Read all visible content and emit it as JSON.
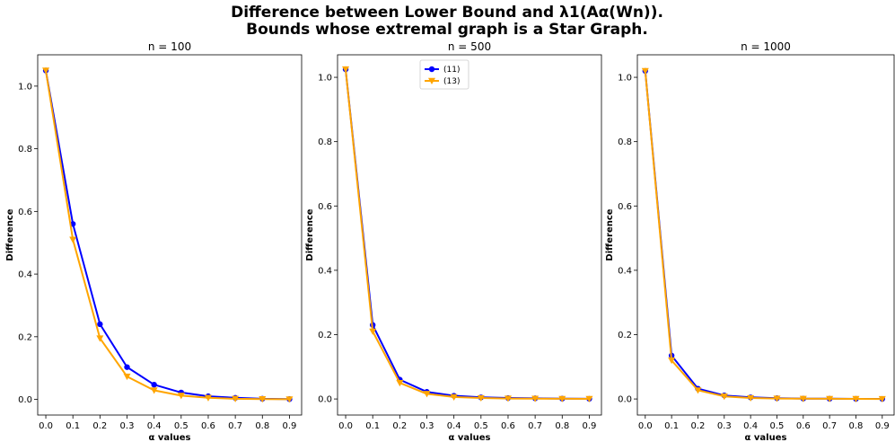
{
  "figure": {
    "title_line1": "Difference between Lower Bound and λ1(Aα(Wn)).",
    "title_line2": "Bounds whose extremal graph is a Star Graph."
  },
  "colors": {
    "series_11": "#0000ff",
    "series_13": "#ffa500"
  },
  "chart_data": [
    {
      "type": "line",
      "title": "n = 100",
      "xlabel": "α values",
      "ylabel": "Difference",
      "x": [
        0.0,
        0.1,
        0.2,
        0.3,
        0.4,
        0.5,
        0.6,
        0.7,
        0.8,
        0.9
      ],
      "xticks": [
        "0.0",
        "0.1",
        "0.2",
        "0.3",
        "0.4",
        "0.5",
        "0.6",
        "0.7",
        "0.8",
        "0.9"
      ],
      "yticks": [
        "0.0",
        "0.2",
        "0.4",
        "0.6",
        "0.8",
        "1.0"
      ],
      "ylim": [
        -0.05,
        1.1
      ],
      "series": [
        {
          "name": "(11)",
          "values": [
            1.05,
            0.56,
            0.24,
            0.103,
            0.047,
            0.022,
            0.01,
            0.005,
            0.002,
            0.001
          ]
        },
        {
          "name": "(13)",
          "values": [
            1.05,
            0.51,
            0.195,
            0.073,
            0.029,
            0.012,
            0.005,
            0.002,
            0.001,
            0.0005
          ]
        }
      ],
      "legend": false
    },
    {
      "type": "line",
      "title": "n = 500",
      "xlabel": "α values",
      "ylabel": "Difference",
      "x": [
        0.0,
        0.1,
        0.2,
        0.3,
        0.4,
        0.5,
        0.6,
        0.7,
        0.8,
        0.9
      ],
      "xticks": [
        "0.0",
        "0.1",
        "0.2",
        "0.3",
        "0.4",
        "0.5",
        "0.6",
        "0.7",
        "0.8",
        "0.9"
      ],
      "yticks": [
        "0.0",
        "0.2",
        "0.4",
        "0.6",
        "0.8",
        "1.0"
      ],
      "ylim": [
        -0.05,
        1.07
      ],
      "series": [
        {
          "name": "(11)",
          "values": [
            1.025,
            0.23,
            0.06,
            0.022,
            0.01,
            0.005,
            0.003,
            0.002,
            0.001,
            0.0005
          ]
        },
        {
          "name": "(13)",
          "values": [
            1.025,
            0.21,
            0.05,
            0.016,
            0.006,
            0.003,
            0.0015,
            0.001,
            0.0005,
            0.0003
          ]
        }
      ],
      "legend": true,
      "legend_position": "top-center"
    },
    {
      "type": "line",
      "title": "n = 1000",
      "xlabel": "α values",
      "ylabel": "Difference",
      "x": [
        0.0,
        0.1,
        0.2,
        0.3,
        0.4,
        0.5,
        0.6,
        0.7,
        0.8,
        0.9
      ],
      "xticks": [
        "0.0",
        "0.1",
        "0.2",
        "0.3",
        "0.4",
        "0.5",
        "0.6",
        "0.7",
        "0.8",
        "0.9"
      ],
      "yticks": [
        "0.0",
        "0.2",
        "0.4",
        "0.6",
        "0.8",
        "1.0"
      ],
      "ylim": [
        -0.05,
        1.07
      ],
      "series": [
        {
          "name": "(11)",
          "values": [
            1.02,
            0.135,
            0.032,
            0.011,
            0.005,
            0.0025,
            0.0012,
            0.0008,
            0.0004,
            0.0002
          ]
        },
        {
          "name": "(13)",
          "values": [
            1.02,
            0.12,
            0.027,
            0.008,
            0.003,
            0.0015,
            0.0008,
            0.0005,
            0.0003,
            0.0001
          ]
        }
      ],
      "legend": false
    }
  ]
}
